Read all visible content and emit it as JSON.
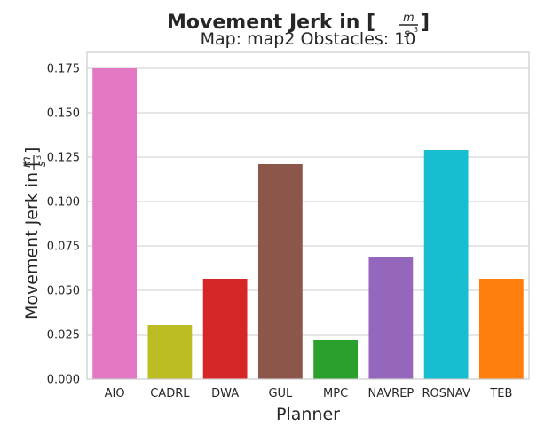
{
  "chart_data": {
    "type": "bar",
    "title": "Movement Jerk in [",
    "title_unit": {
      "numerator": "m",
      "denominator": "s",
      "exponent": "3"
    },
    "subtitle": "Map: map2 Obstacles: 10",
    "xlabel": "Planner",
    "ylabel": "Movement Jerk in [",
    "categories": [
      "AIO",
      "CADRL",
      "DWA",
      "GUL",
      "MPC",
      "NAVREP",
      "ROSNAV",
      "TEB"
    ],
    "values": [
      0.175,
      0.0305,
      0.0565,
      0.121,
      0.022,
      0.069,
      0.129,
      0.0565
    ],
    "colors": [
      "#e377c2",
      "#bcbd22",
      "#d62728",
      "#8c564b",
      "#2ca02c",
      "#9467bd",
      "#17becf",
      "#ff7f0e"
    ],
    "ylim": [
      0,
      0.184
    ],
    "yticks": [
      "0.000",
      "0.025",
      "0.050",
      "0.075",
      "0.100",
      "0.125",
      "0.150",
      "0.175"
    ],
    "ytick_values": [
      0,
      0.025,
      0.05,
      0.075,
      0.1,
      0.125,
      0.15,
      0.175
    ],
    "grid": "horizontal",
    "legend": "none"
  }
}
